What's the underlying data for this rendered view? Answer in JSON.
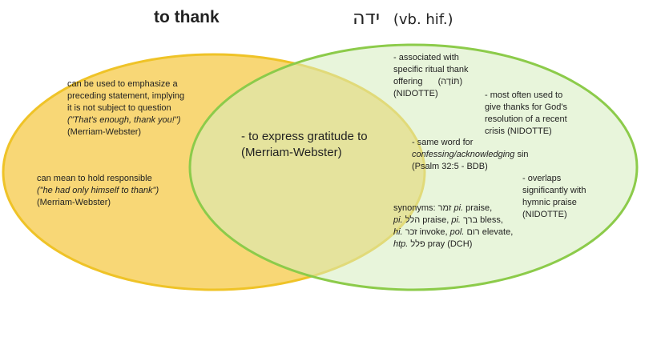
{
  "titles": {
    "left": "to thank",
    "right_hebrew": "ידה",
    "right_suffix": "(vb. hif.)"
  },
  "colors": {
    "left_fill": "#f8d776",
    "left_stroke": "#efc327",
    "right_fill": "#e6f3d6",
    "right_stroke": "#8ccb4a"
  },
  "left": {
    "note1": {
      "text": "can be used to emphasize a preceding statement, implying it is not subject to question",
      "quote": "(\"That's enough, thank you!\")",
      "source": "(Merriam-Webster)"
    },
    "note2": {
      "text": "can mean to hold responsible",
      "quote": "(\"he had only himself to thank\")",
      "source": "(Merriam-Webster)"
    }
  },
  "center": {
    "line1": "- to express gratitude to",
    "line2": "(Merriam-Webster)"
  },
  "right": {
    "note1": {
      "text": "- associated with specific ritual thank offering",
      "hebrew": "(תּוֹדָה)",
      "source": "(NIDOTTE)"
    },
    "note2": {
      "text": "- most often used to give thanks for God's resolution of a recent crisis (NIDOTTE)"
    },
    "note3": {
      "prefix": "- same word for",
      "italic": "confessing/acknowledging",
      "suffix": "sin",
      "source": "(Psalm 32:5 - BDB)"
    },
    "note4": {
      "text": "- overlaps significantly with hymnic praise (NIDOTTE)"
    },
    "synonyms": {
      "label": "synonyms:",
      "items": [
        {
          "heb": "זמר",
          "stem": "pi.",
          "gloss": "praise,"
        },
        {
          "stem": "pi.",
          "heb": "הלל",
          "gloss": "praise,"
        },
        {
          "stem": "pi.",
          "heb": "ברך",
          "gloss": "bless,"
        },
        {
          "stem": "hi.",
          "heb": "זכר",
          "gloss": "invoke,"
        },
        {
          "stem": "pol.",
          "heb": "רום",
          "gloss": "elevate,"
        },
        {
          "stem": "htp.",
          "heb": "פלל",
          "gloss": "pray (DCH)"
        }
      ]
    }
  }
}
